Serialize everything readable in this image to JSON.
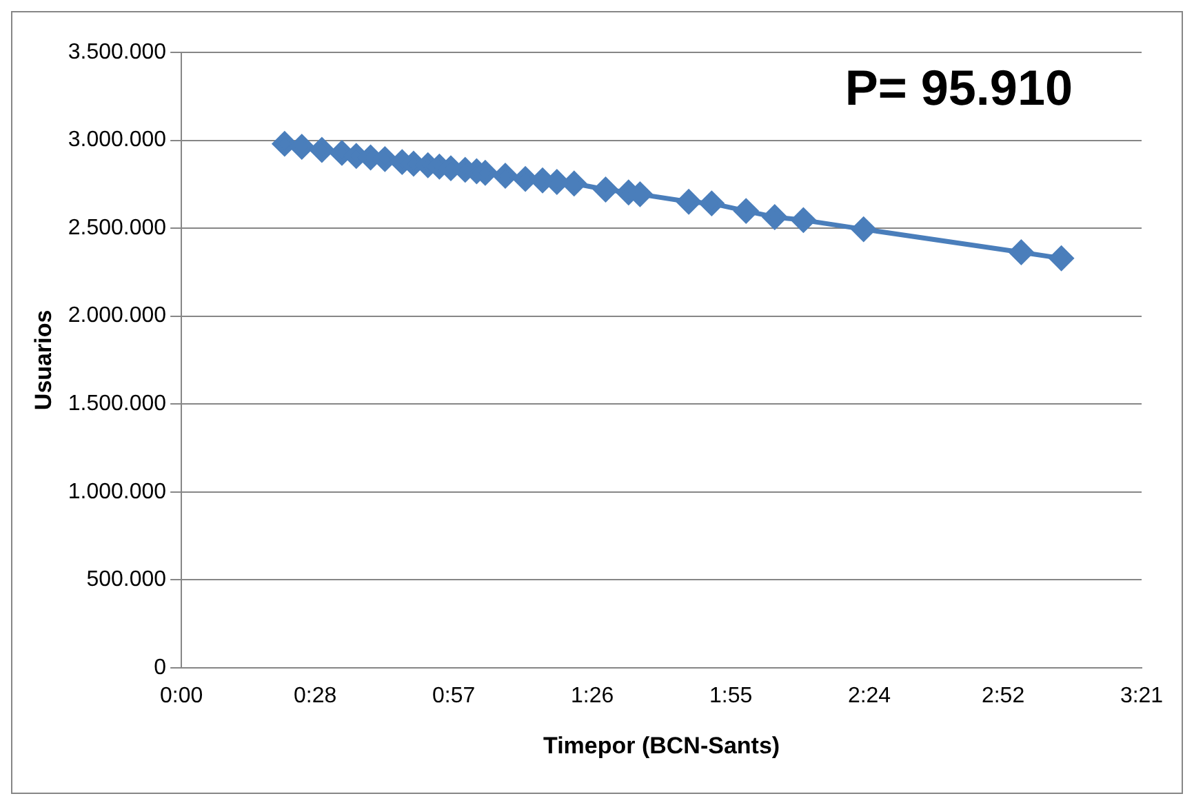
{
  "chart_data": {
    "type": "line",
    "xlabel": "Timepor (BCN-Sants)",
    "ylabel": "Usuarios",
    "annotations": [
      "P= 95.910"
    ],
    "x": [
      0.36,
      0.42,
      0.49,
      0.56,
      0.61,
      0.66,
      0.71,
      0.77,
      0.81,
      0.86,
      0.9,
      0.94,
      0.99,
      1.03,
      1.06,
      1.13,
      1.2,
      1.26,
      1.31,
      1.37,
      1.48,
      1.56,
      1.6,
      1.77,
      1.85,
      1.97,
      2.07,
      2.17,
      2.38,
      2.93,
      3.07
    ],
    "series": [
      {
        "color": "#4a7ebb",
        "values": [
          2980000,
          2963000,
          2945000,
          2928000,
          2911000,
          2902000,
          2893000,
          2876000,
          2867000,
          2858000,
          2850000,
          2841000,
          2832000,
          2824000,
          2815000,
          2798000,
          2780000,
          2772000,
          2763000,
          2754000,
          2720000,
          2703000,
          2693000,
          2650000,
          2641000,
          2598000,
          2563000,
          2546000,
          2494000,
          2363000,
          2329000
        ]
      }
    ],
    "xlim": [
      0,
      3.35
    ],
    "xticks": [
      {
        "value": 0,
        "label": "0:00"
      },
      {
        "value": 0.4667,
        "label": "0:28"
      },
      {
        "value": 0.95,
        "label": "0:57"
      },
      {
        "value": 1.4333,
        "label": "1:26"
      },
      {
        "value": 1.9167,
        "label": "1:55"
      },
      {
        "value": 2.4,
        "label": "2:24"
      },
      {
        "value": 2.8667,
        "label": "2:52"
      },
      {
        "value": 3.35,
        "label": "3:21"
      }
    ],
    "ylim": [
      0,
      3500000
    ],
    "yticks": [
      0,
      {
        "value": 500000,
        "label": "500.000"
      },
      {
        "value": 1000000,
        "label": "1.000.000"
      },
      {
        "value": 1500000,
        "label": "1.500.000"
      },
      {
        "value": 2000000,
        "label": "2.000.000"
      },
      {
        "value": 2500000,
        "label": "2.500.000"
      },
      {
        "value": 3000000,
        "label": "3.000.000"
      },
      {
        "value": 3500000,
        "label": "3.500.000"
      }
    ],
    "grid": "y",
    "legend": false,
    "marker": "diamond",
    "line_style": "solid"
  }
}
